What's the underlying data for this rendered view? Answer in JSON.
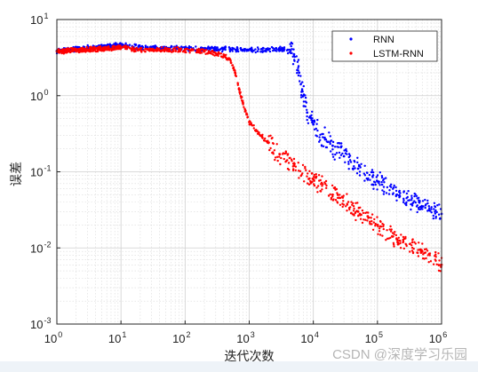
{
  "chart_data": {
    "type": "scatter",
    "title": "",
    "xlabel": "迭代次数",
    "ylabel": "误差",
    "xscale": "log",
    "yscale": "log",
    "xlim": [
      1,
      1000000
    ],
    "ylim": [
      0.001,
      10
    ],
    "x_ticks": [
      {
        "value": 1,
        "base": "10",
        "exp": "0"
      },
      {
        "value": 10,
        "base": "10",
        "exp": "1"
      },
      {
        "value": 100,
        "base": "10",
        "exp": "2"
      },
      {
        "value": 1000,
        "base": "10",
        "exp": "3"
      },
      {
        "value": 10000,
        "base": "10",
        "exp": "4"
      },
      {
        "value": 100000,
        "base": "10",
        "exp": "5"
      },
      {
        "value": 1000000,
        "base": "10",
        "exp": "6"
      }
    ],
    "y_ticks": [
      {
        "value": 10,
        "base": "10",
        "exp": "1"
      },
      {
        "value": 1,
        "base": "10",
        "exp": "0"
      },
      {
        "value": 0.1,
        "base": "10",
        "exp": "-1"
      },
      {
        "value": 0.01,
        "base": "10",
        "exp": "-2"
      },
      {
        "value": 0.001,
        "base": "10",
        "exp": "-3"
      }
    ],
    "grid": true,
    "minor_grid": true,
    "legend_position": "top-right",
    "series": [
      {
        "name": "RNN",
        "color": "#0000ff",
        "points": [
          [
            1,
            3.9
          ],
          [
            10,
            4.6
          ],
          [
            20,
            4.3
          ],
          [
            50,
            4.2
          ],
          [
            100,
            4.2
          ],
          [
            200,
            4.1
          ],
          [
            500,
            4.1
          ],
          [
            1000,
            4.0
          ],
          [
            2000,
            4.0
          ],
          [
            3000,
            4.1
          ],
          [
            4000,
            4.0
          ],
          [
            5000,
            3.5
          ],
          [
            6000,
            2.0
          ],
          [
            7000,
            1.0
          ],
          [
            8000,
            0.6
          ],
          [
            10000,
            0.42
          ],
          [
            15000,
            0.28
          ],
          [
            20000,
            0.22
          ],
          [
            30000,
            0.16
          ],
          [
            50000,
            0.11
          ],
          [
            100000,
            0.075
          ],
          [
            200000,
            0.05
          ],
          [
            500000,
            0.035
          ],
          [
            1000000,
            0.028
          ]
        ]
      },
      {
        "name": "LSTM-RNN",
        "color": "#ff0000",
        "points": [
          [
            1,
            3.8
          ],
          [
            10,
            4.3
          ],
          [
            20,
            4.0
          ],
          [
            50,
            4.0
          ],
          [
            100,
            4.0
          ],
          [
            200,
            3.8
          ],
          [
            300,
            3.6
          ],
          [
            400,
            3.4
          ],
          [
            500,
            3.0
          ],
          [
            600,
            2.0
          ],
          [
            700,
            1.2
          ],
          [
            800,
            0.8
          ],
          [
            1000,
            0.45
          ],
          [
            1500,
            0.3
          ],
          [
            2000,
            0.24
          ],
          [
            3000,
            0.17
          ],
          [
            5000,
            0.12
          ],
          [
            10000,
            0.08
          ],
          [
            20000,
            0.05
          ],
          [
            50000,
            0.03
          ],
          [
            100000,
            0.02
          ],
          [
            200000,
            0.013
          ],
          [
            500000,
            0.009
          ],
          [
            1000000,
            0.006
          ]
        ]
      }
    ]
  },
  "watermark": "CSDN @深度学习乐园"
}
